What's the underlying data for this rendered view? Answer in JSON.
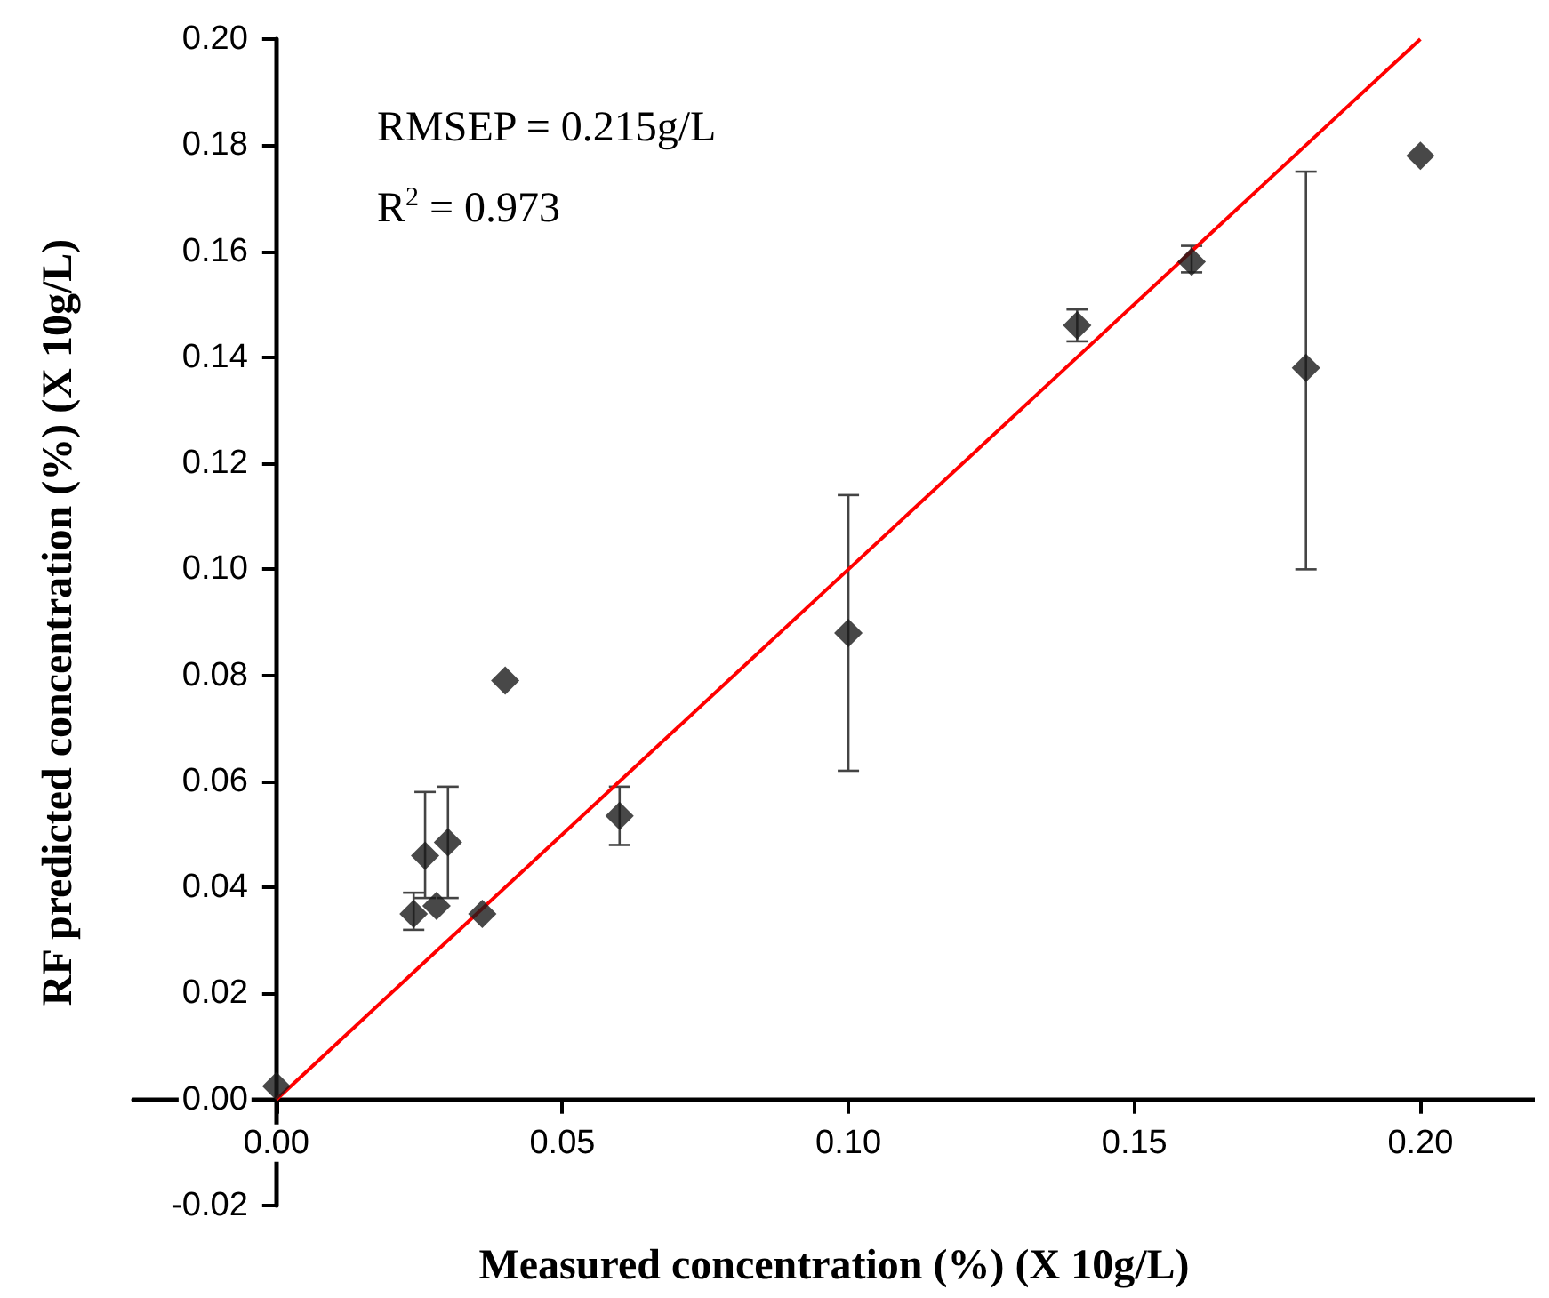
{
  "chart_data": {
    "type": "scatter",
    "xlabel": "Measured concentration (%) (X 10g/L)",
    "ylabel": "RF predicted concentration (%) (X 10g/L)",
    "annotations": [
      "RMSEP = 0.215g/L",
      "R$^{2}$ = 0.973"
    ],
    "xlim": [
      -0.025,
      0.22
    ],
    "xticks": [
      {
        "value": 0,
        "label": "0.00"
      },
      {
        "value": 0.05,
        "label": "0.05"
      },
      {
        "value": 0.1,
        "label": "0.10"
      },
      {
        "value": 0.15,
        "label": "0.15"
      },
      {
        "value": 0.2,
        "label": "0.20"
      }
    ],
    "ylim": [
      -0.02,
      0.2
    ],
    "yticks": [
      {
        "value": -0.02,
        "label": "-0.02"
      },
      {
        "value": 0,
        "label": "0.00"
      },
      {
        "value": 0.02,
        "label": "0.02"
      },
      {
        "value": 0.04,
        "label": "0.04"
      },
      {
        "value": 0.06,
        "label": "0.06"
      },
      {
        "value": 0.08,
        "label": "0.08"
      },
      {
        "value": 0.1,
        "label": "0.10"
      },
      {
        "value": 0.12,
        "label": "0.12"
      },
      {
        "value": 0.14,
        "label": "0.14"
      },
      {
        "value": 0.16,
        "label": "0.16"
      },
      {
        "value": 0.18,
        "label": "0.18"
      },
      {
        "value": 0.2,
        "label": "0.20"
      }
    ],
    "grid": false,
    "series": [
      {
        "marker": "diamond",
        "color": "#1a1a1a",
        "x": [
          0,
          0.024,
          0.026,
          0.028,
          0.03,
          0.036,
          0.04,
          0.06,
          0.1,
          0.14,
          0.16,
          0.18,
          0.2
        ],
        "values": [
          0.0025,
          0.035,
          0.046,
          0.0365,
          0.0485,
          0.035,
          0.079,
          0.0535,
          0.088,
          0.146,
          0.158,
          0.138,
          0.178
        ],
        "errors": [
          null,
          [
            0.032,
            0.039
          ],
          [
            0.038,
            0.058
          ],
          null,
          [
            0.038,
            0.059
          ],
          null,
          null,
          [
            0.048,
            0.059
          ],
          [
            0.062,
            0.114
          ],
          [
            0.143,
            0.149
          ],
          [
            0.156,
            0.161
          ],
          [
            0.1,
            0.175
          ],
          null
        ]
      },
      {
        "type": "line",
        "marker": "none",
        "color": "#ff0000",
        "x": [
          0,
          0.2
        ],
        "values": [
          0,
          0.2
        ]
      }
    ]
  }
}
